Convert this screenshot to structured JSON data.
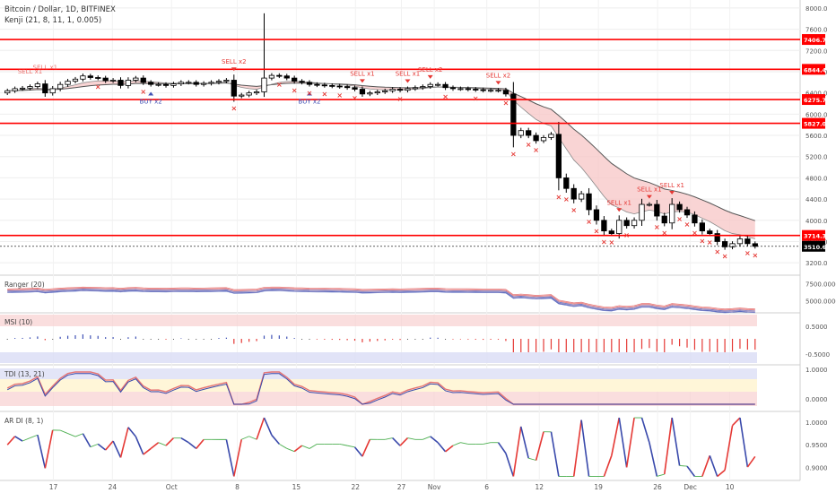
{
  "header": {
    "symbol": "Bitcoin / Dollar, 1D, BITFINEX",
    "indicator": "Kenji (21, 8, 11, 1, 0.005)"
  },
  "colors": {
    "up": "#ffffff",
    "down": "#000000",
    "level_line": "#ff0000",
    "band_fill": "#f7c6c6",
    "band_line": "#555555",
    "sell": "#e53935",
    "buy": "#3f51b5",
    "cross": "#e53935"
  },
  "chart_data": [
    {
      "type": "candlestick",
      "title": "Bitcoin / Dollar, 1D, BITFINEX",
      "x_ticks": [
        "17",
        "24",
        "Oct",
        "8",
        "15",
        "22",
        "27",
        "Nov",
        "6",
        "12",
        "19",
        "26",
        "Dec",
        "10"
      ],
      "y_ticks": [
        "8000.0",
        "7600.0",
        "7200.0",
        "6800.0",
        "6400.0",
        "6000.0",
        "5600.0",
        "5200.0",
        "4800.0",
        "4400.0",
        "4000.0",
        "3600.0",
        "3200.0"
      ],
      "ylim": [
        3000,
        8100
      ],
      "level_labels": [
        "7406.7",
        "6844.4",
        "6275.7",
        "5827.0",
        "3714.3"
      ],
      "last_price_label": "3510.6",
      "close": [
        6440,
        6480,
        6490,
        6520,
        6570,
        6400,
        6480,
        6560,
        6620,
        6660,
        6720,
        6690,
        6680,
        6630,
        6640,
        6540,
        6640,
        6680,
        6600,
        6560,
        6560,
        6540,
        6570,
        6600,
        6600,
        6560,
        6580,
        6600,
        6620,
        6640,
        6340,
        6360,
        6400,
        6420,
        6680,
        6730,
        6720,
        6680,
        6620,
        6600,
        6560,
        6550,
        6540,
        6530,
        6520,
        6500,
        6470,
        6380,
        6400,
        6420,
        6440,
        6470,
        6450,
        6480,
        6500,
        6520,
        6560,
        6560,
        6500,
        6480,
        6480,
        6470,
        6460,
        6450,
        6450,
        6450,
        6380,
        5600,
        5690,
        5600,
        5500,
        5560,
        5620,
        4800,
        4600,
        4400,
        4500,
        4200,
        4000,
        3800,
        3750,
        4000,
        3900,
        4000,
        4300,
        4300,
        4080,
        3950,
        4300,
        4200,
        4100,
        3950,
        3800,
        3750,
        3600,
        3500,
        3560,
        3650,
        3560,
        3510
      ]
    },
    {
      "type": "line",
      "title": "Ranger (20)",
      "y_ticks": [
        "7500.0000",
        "5000.0000"
      ]
    },
    {
      "type": "bar",
      "title": "MSI (10)",
      "y_ticks": [
        "0.5000",
        "-0.5000"
      ]
    },
    {
      "type": "line",
      "title": "TDI (13, 21)",
      "y_ticks": [
        "1.0000",
        "0.0000"
      ]
    },
    {
      "type": "line",
      "title": "AR DI (8, 1)",
      "y_ticks": [
        "1.0000",
        "0.9500",
        "0.9000"
      ]
    }
  ],
  "signals": {
    "sell": [
      {
        "label": "SELL x2",
        "i": 30
      },
      {
        "label": "SELL x1",
        "i": 47
      },
      {
        "label": "SELL x1",
        "i": 53
      },
      {
        "label": "SELL x2",
        "i": 56
      },
      {
        "label": "SELL x2",
        "i": 65
      },
      {
        "label": "SELL x1",
        "i": 81
      },
      {
        "label": "SELL x1",
        "i": 85
      },
      {
        "label": "SELL x1",
        "i": 88
      }
    ],
    "sell_blurred": [
      {
        "label": "SELL x1",
        "i": 3
      },
      {
        "label": "SELL x1",
        "i": 5
      }
    ],
    "buy": [
      {
        "label": "BUY x2",
        "i": 19
      },
      {
        "label": "BUY x2",
        "i": 40
      }
    ]
  }
}
